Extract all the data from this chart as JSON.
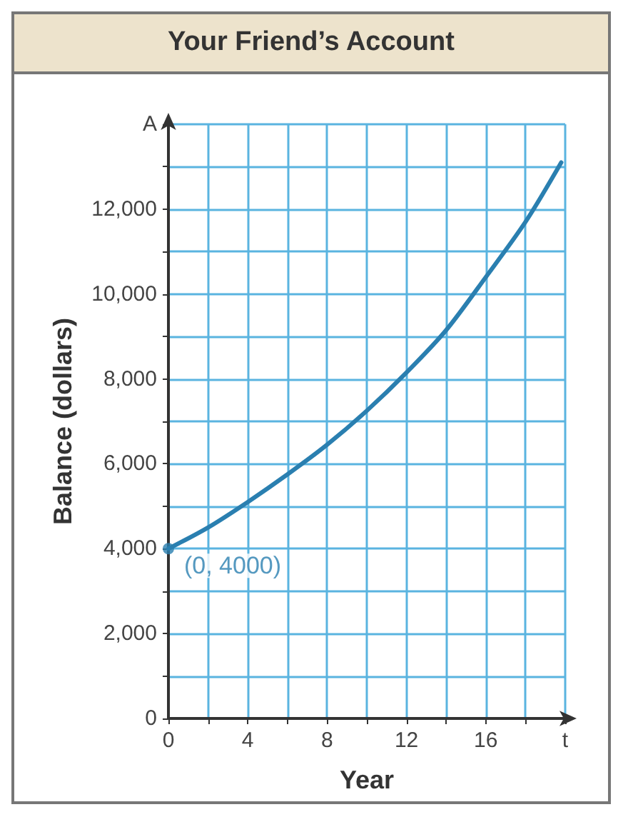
{
  "chart_data": {
    "type": "line",
    "title": "Your Friend’s Account",
    "xlabel": "Year",
    "ylabel": "Balance (dollars)",
    "x": [
      0,
      2,
      4,
      6,
      8,
      10,
      12,
      14,
      16,
      18,
      19.8
    ],
    "series": [
      {
        "color": "#2a7fb0",
        "values": [
          4000,
          4500,
          5100,
          5750,
          6450,
          7250,
          8150,
          9150,
          10400,
          11700,
          13100
        ]
      }
    ],
    "xlim": [
      0,
      20
    ],
    "xticks": [
      0,
      {
        "value": 2,
        "label": null
      },
      4,
      {
        "value": 6,
        "label": null
      },
      8,
      {
        "value": 10,
        "label": null
      },
      12,
      {
        "value": 14,
        "label": null
      },
      16,
      {
        "value": 18,
        "label": null
      },
      {
        "value": 20,
        "label": "t"
      }
    ],
    "ylim": [
      0,
      14000
    ],
    "yticks": [
      {
        "value": 0,
        "label": "0"
      },
      {
        "value": 1000,
        "label": null
      },
      {
        "value": 2000,
        "label": "2,000"
      },
      {
        "value": 3000,
        "label": null
      },
      {
        "value": 4000,
        "label": "4,000"
      },
      {
        "value": 5000,
        "label": null
      },
      {
        "value": 6000,
        "label": "6,000"
      },
      {
        "value": 7000,
        "label": null
      },
      {
        "value": 8000,
        "label": "8,000"
      },
      {
        "value": 9000,
        "label": null
      },
      {
        "value": 10000,
        "label": "10,000"
      },
      {
        "value": 11000,
        "label": null
      },
      {
        "value": 12000,
        "label": "12,000"
      },
      {
        "value": 13000,
        "label": null
      },
      {
        "value": 14000,
        "label": "A"
      }
    ],
    "grid": true,
    "marker": "none",
    "line_style": "solid",
    "annotations": [
      {
        "text": "(0, 4000)",
        "x": 0,
        "y": 4000
      }
    ]
  }
}
